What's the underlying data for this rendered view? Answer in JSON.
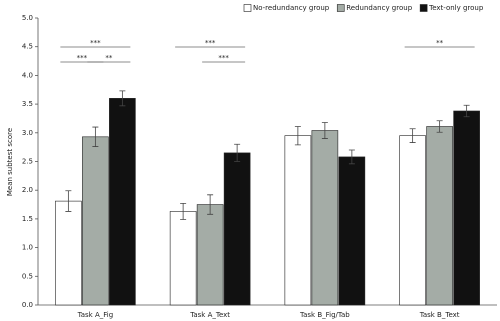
{
  "chart_data": {
    "type": "bar",
    "y_label": "Mean subtest score",
    "categories": [
      "Task A_Fig",
      "Task A_Text",
      "Task B_Fig/Tab",
      "Task B_Text"
    ],
    "series": [
      {
        "name": "No-redundancy group",
        "color": "#ffffff",
        "values": [
          1.81,
          1.63,
          2.95,
          2.95
        ],
        "errors": [
          0.18,
          0.14,
          0.16,
          0.12
        ]
      },
      {
        "name": "Redundancy group",
        "color": "#a4aca6",
        "values": [
          2.93,
          1.75,
          3.04,
          3.11
        ],
        "errors": [
          0.17,
          0.17,
          0.14,
          0.1
        ]
      },
      {
        "name": "Text-only group",
        "color": "#111111",
        "values": [
          3.6,
          2.65,
          2.58,
          3.38
        ],
        "errors": [
          0.13,
          0.15,
          0.12,
          0.1
        ]
      }
    ],
    "annotations": [
      {
        "text": "***",
        "category": "Task A_Fig",
        "between": [
          "No-redundancy group",
          "Text-only group"
        ]
      },
      {
        "text": "***",
        "category": "Task A_Fig",
        "between": [
          "No-redundancy group",
          "Redundancy group"
        ]
      },
      {
        "text": "**",
        "category": "Task A_Fig",
        "between": [
          "Redundancy group",
          "Text-only group"
        ]
      },
      {
        "text": "***",
        "category": "Task A_Text",
        "between": [
          "No-redundancy group",
          "Text-only group"
        ]
      },
      {
        "text": "***",
        "category": "Task A_Text",
        "between": [
          "Redundancy group",
          "Text-only group"
        ]
      },
      {
        "text": "**",
        "category": "Task B_Text",
        "between": [
          "No-redundancy group",
          "Text-only group"
        ]
      }
    ],
    "ylim": [
      0,
      5
    ],
    "yticks": [
      {
        "value": 0,
        "label": "0.0"
      },
      0.5,
      {
        "value": 1,
        "label": "1.0"
      },
      1.5,
      {
        "value": 2,
        "label": "2.0"
      },
      2.5,
      {
        "value": 3,
        "label": "3.0"
      },
      3.5,
      {
        "value": 4,
        "label": "4.0"
      },
      4.5,
      {
        "value": 5,
        "label": "5.0"
      }
    ],
    "grid": false,
    "legend": "top-right"
  }
}
